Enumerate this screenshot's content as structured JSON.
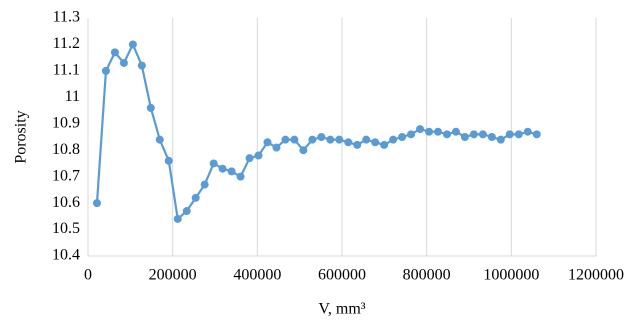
{
  "chart_data": {
    "type": "line",
    "x_label": "V, mm³",
    "y_label": "Porosity",
    "x": [
      21200,
      42400,
      63600,
      84800,
      106000,
      127200,
      148400,
      169600,
      190800,
      212000,
      233200,
      254400,
      275600,
      296800,
      318000,
      339200,
      360400,
      381600,
      402800,
      424000,
      445200,
      466400,
      487600,
      508800,
      530000,
      551200,
      572400,
      593600,
      614800,
      636000,
      657200,
      678400,
      699600,
      720800,
      742000,
      763200,
      784400,
      805600,
      826800,
      848000,
      869200,
      890400,
      911600,
      932800,
      954000,
      975200,
      996400,
      1017600,
      1038800,
      1060000
    ],
    "series": [
      {
        "color": "#5b9bd5",
        "values": [
          10.6,
          11.1,
          11.17,
          11.13,
          11.2,
          11.12,
          10.96,
          10.84,
          10.76,
          10.54,
          10.57,
          10.62,
          10.67,
          10.75,
          10.73,
          10.72,
          10.7,
          10.77,
          10.78,
          10.83,
          10.81,
          10.84,
          10.84,
          10.8,
          10.84,
          10.85,
          10.84,
          10.84,
          10.83,
          10.82,
          10.84,
          10.83,
          10.82,
          10.84,
          10.85,
          10.86,
          10.88,
          10.87,
          10.87,
          10.86,
          10.87,
          10.85,
          10.86,
          10.86,
          10.85,
          10.84,
          10.86,
          10.86,
          10.87,
          10.86
        ]
      }
    ],
    "xlim": [
      0,
      1200000
    ],
    "xticks": [
      0,
      200000,
      400000,
      600000,
      800000,
      1000000,
      1200000
    ],
    "ylim": [
      10.4,
      11.3
    ],
    "yticks": [
      10.4,
      10.5,
      10.6,
      10.7,
      10.8,
      10.9,
      11,
      11.1,
      11.2,
      11.3
    ],
    "grid": "x"
  }
}
